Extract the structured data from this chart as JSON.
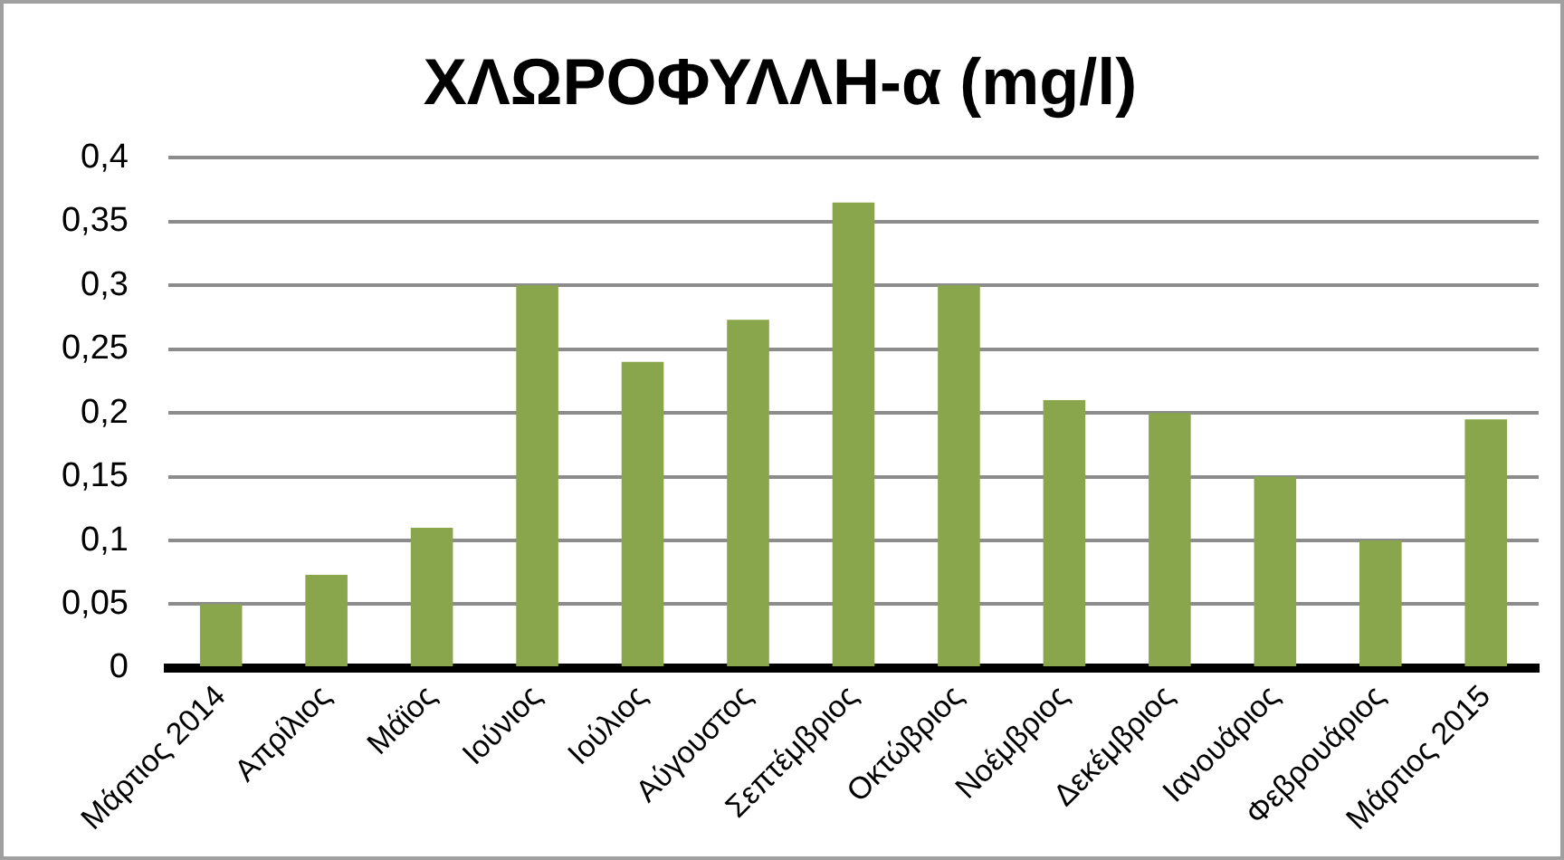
{
  "chart_data": {
    "type": "bar",
    "title": "ΧΛΩΡΟΦΥΛΛΗ-α (mg/l)",
    "categories": [
      "Μάρτιος 2014",
      "Απρίλιος",
      "Μάϊος",
      "Ιούνιος",
      "Ιούλιος",
      "Αύγουστος",
      "Σεπτέμβριος",
      "Οκτώβριος",
      "Νοέμβριος",
      "Δεκέμβριος",
      "Ιανουάριος",
      "Φεβρουάριος",
      "Μάρτιος 2015"
    ],
    "values": [
      0.05,
      0.073,
      0.11,
      0.3,
      0.24,
      0.273,
      0.365,
      0.3,
      0.21,
      0.2,
      0.15,
      0.1,
      0.195
    ],
    "color": "#8aa64d",
    "ylim": [
      0,
      0.4
    ],
    "yticks": [
      0,
      {
        "value": 0.05,
        "label": "0,05"
      },
      {
        "value": 0.1,
        "label": "0,1"
      },
      {
        "value": 0.15,
        "label": "0,15"
      },
      {
        "value": 0.2,
        "label": "0,2"
      },
      {
        "value": 0.25,
        "label": "0,25"
      },
      {
        "value": 0.3,
        "label": "0,3"
      },
      {
        "value": 0.35,
        "label": "0,35"
      },
      {
        "value": 0.4,
        "label": "0,4"
      }
    ],
    "grid": "y",
    "legend": false
  }
}
